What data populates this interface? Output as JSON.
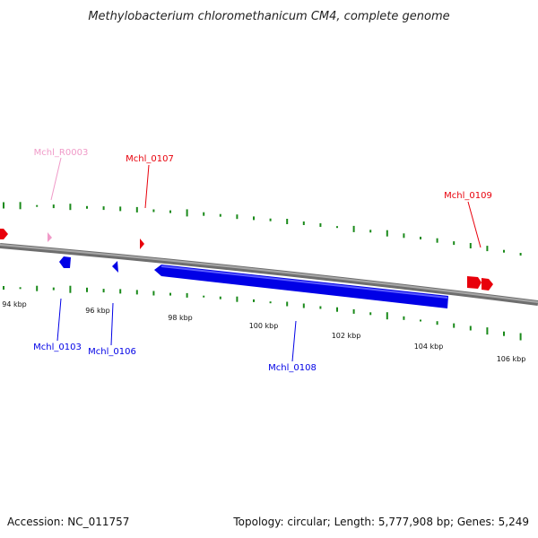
{
  "title": "Methylobacterium chloromethanicum CM4, complete genome",
  "footer": {
    "accession": "Accession: NC_011757",
    "summary": "Topology: circular; Length: 5,777,908 bp; Genes: 5,249"
  },
  "colors": {
    "forward_gene": "#e8000b",
    "reverse_gene": "#0000e6",
    "rna_gene": "#f09ac8",
    "gc_tick": "#1a8a1a",
    "backbone": "#8a8a8a"
  },
  "kbp_labels": [
    "94 kbp",
    "96 kbp",
    "98 kbp",
    "100 kbp",
    "102 kbp",
    "104 kbp",
    "106 kbp"
  ],
  "genes": [
    {
      "name": "Mchl_R0003",
      "strand": "forward",
      "type": "rna"
    },
    {
      "name": "Mchl_0107",
      "strand": "forward",
      "type": "cds"
    },
    {
      "name": "Mchl_0109",
      "strand": "forward",
      "type": "cds"
    },
    {
      "name": "Mchl_0103",
      "strand": "reverse",
      "type": "cds"
    },
    {
      "name": "Mchl_0106",
      "strand": "reverse",
      "type": "cds"
    },
    {
      "name": "Mchl_0108",
      "strand": "reverse",
      "type": "cds"
    }
  ]
}
